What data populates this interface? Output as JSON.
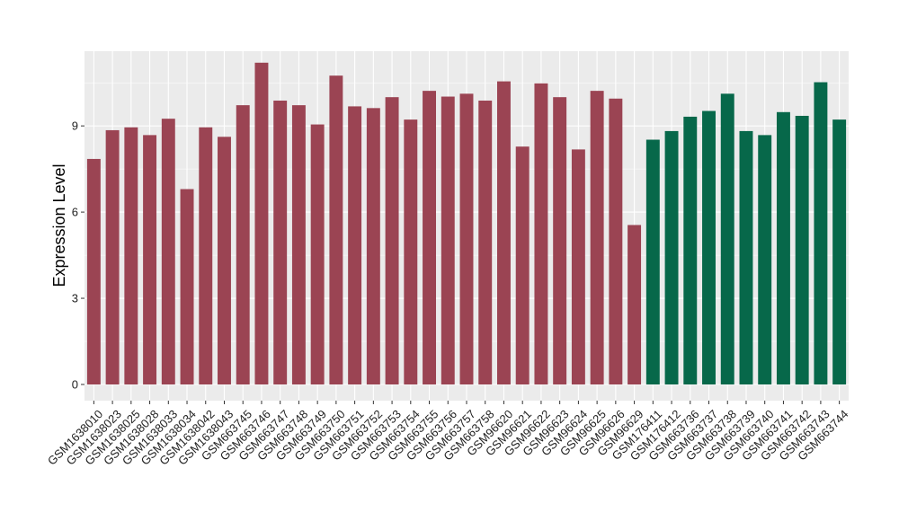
{
  "chart_data": {
    "type": "bar",
    "title": "",
    "xlabel": "",
    "ylabel": "Expression Level",
    "ylim": [
      0,
      11.6
    ],
    "yticks": [
      0,
      3,
      6,
      9
    ],
    "grid": true,
    "legend": "none",
    "colors": {
      "group1": "#9B4453",
      "group2": "#07684A",
      "panel": "#EBEBEB",
      "grid": "#FFFFFF",
      "axis_tick": "#333333"
    },
    "categories": [
      "GSM1638010",
      "GSM1638023",
      "GSM1638025",
      "GSM1638028",
      "GSM1638033",
      "GSM1638034",
      "GSM1638042",
      "GSM1638043",
      "GSM663745",
      "GSM663746",
      "GSM663747",
      "GSM663748",
      "GSM663749",
      "GSM663750",
      "GSM663751",
      "GSM663752",
      "GSM663753",
      "GSM663754",
      "GSM663755",
      "GSM663756",
      "GSM663757",
      "GSM663758",
      "GSM96620",
      "GSM96621",
      "GSM96622",
      "GSM96623",
      "GSM96624",
      "GSM96625",
      "GSM96626",
      "GSM96629",
      "GSM176411",
      "GSM176412",
      "GSM663736",
      "GSM663737",
      "GSM663738",
      "GSM663739",
      "GSM663740",
      "GSM663741",
      "GSM663742",
      "GSM663743",
      "GSM663744"
    ],
    "values": [
      7.85,
      8.85,
      8.95,
      8.68,
      9.25,
      6.8,
      8.95,
      8.62,
      9.72,
      11.2,
      9.88,
      9.72,
      9.05,
      10.75,
      9.68,
      9.62,
      10.0,
      9.22,
      10.22,
      10.02,
      10.12,
      9.88,
      10.55,
      8.28,
      10.48,
      10.0,
      8.18,
      10.22,
      9.95,
      5.55,
      8.52,
      8.82,
      9.32,
      9.52,
      10.12,
      8.82,
      8.68,
      9.48,
      9.35,
      10.52,
      9.22
    ],
    "groups": [
      1,
      1,
      1,
      1,
      1,
      1,
      1,
      1,
      1,
      1,
      1,
      1,
      1,
      1,
      1,
      1,
      1,
      1,
      1,
      1,
      1,
      1,
      1,
      1,
      1,
      1,
      1,
      1,
      1,
      1,
      2,
      2,
      2,
      2,
      2,
      2,
      2,
      2,
      2,
      2,
      2
    ]
  }
}
